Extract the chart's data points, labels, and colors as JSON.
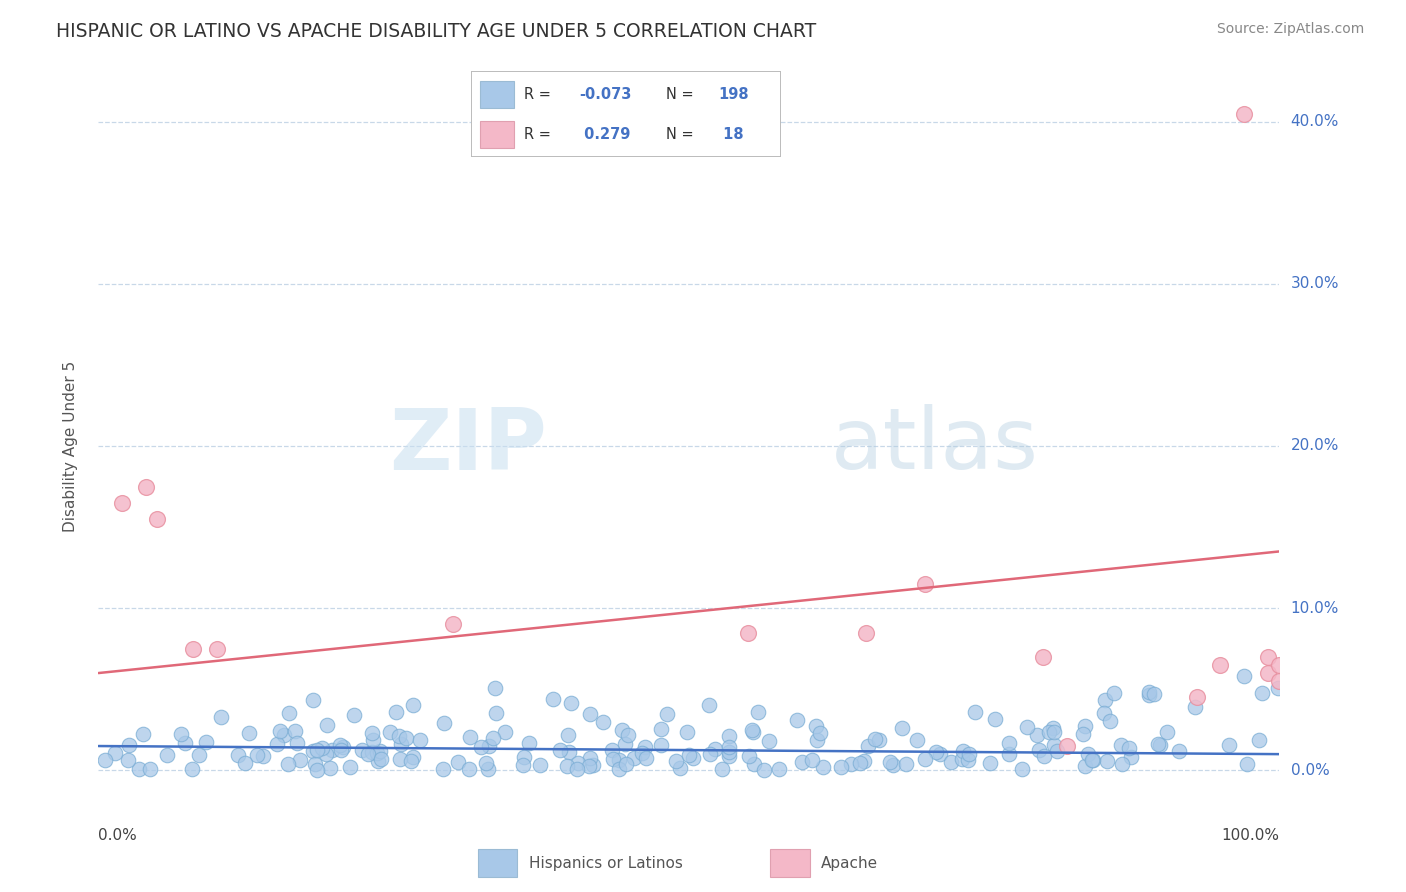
{
  "title": "HISPANIC OR LATINO VS APACHE DISABILITY AGE UNDER 5 CORRELATION CHART",
  "source": "Source: ZipAtlas.com",
  "ylabel": "Disability Age Under 5",
  "xlim": [
    0,
    100
  ],
  "ylim": [
    -2,
    42
  ],
  "yticks": [
    0,
    10,
    20,
    30,
    40
  ],
  "ytick_labels": [
    "0.0%",
    "10.0%",
    "20.0%",
    "30.0%",
    "40.0%"
  ],
  "blue_color": "#a8c8e8",
  "blue_edge": "#7aadd4",
  "pink_color": "#f4b8c8",
  "pink_edge": "#e890a0",
  "blue_line_color": "#4472c4",
  "pink_line_color": "#e06878",
  "grid_color": "#c8d8e8",
  "title_color": "#333333",
  "R_blue": -0.073,
  "N_blue": 198,
  "R_pink": 0.279,
  "N_pink": 18,
  "blue_line_y0": 1.5,
  "blue_line_y1": 1.0,
  "pink_line_y0": 6.0,
  "pink_line_y1": 13.5,
  "legend_R_color": "#4472c4",
  "legend_N_color": "#4472c4",
  "ytick_color": "#4472c4"
}
